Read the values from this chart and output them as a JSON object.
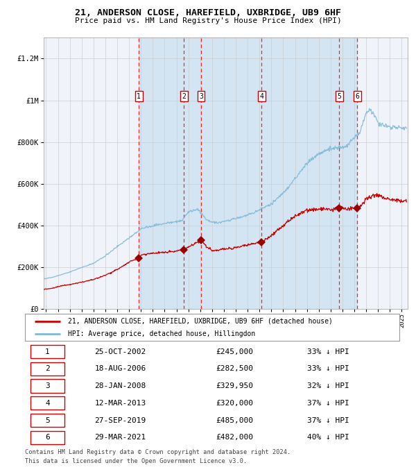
{
  "title": "21, ANDERSON CLOSE, HAREFIELD, UXBRIDGE, UB9 6HF",
  "subtitle": "Price paid vs. HM Land Registry's House Price Index (HPI)",
  "hpi_color": "#7fb8d8",
  "hpi_fill": "#c8dff0",
  "price_color": "#cc0000",
  "marker_color": "#990000",
  "grid_color": "#cccccc",
  "ylim": [
    0,
    1300000
  ],
  "xlim_start": 1994.8,
  "xlim_end": 2025.5,
  "yticks": [
    0,
    200000,
    400000,
    600000,
    800000,
    1000000,
    1200000
  ],
  "ytick_labels": [
    "£0",
    "£200K",
    "£400K",
    "£600K",
    "£800K",
    "£1M",
    "£1.2M"
  ],
  "sales": [
    {
      "num": 1,
      "year": 2002.82,
      "price": 245000,
      "label": "1"
    },
    {
      "num": 2,
      "year": 2006.63,
      "price": 282500,
      "label": "2"
    },
    {
      "num": 3,
      "year": 2008.08,
      "price": 329950,
      "label": "3"
    },
    {
      "num": 4,
      "year": 2013.19,
      "price": 320000,
      "label": "4"
    },
    {
      "num": 5,
      "year": 2019.74,
      "price": 485000,
      "label": "5"
    },
    {
      "num": 6,
      "year": 2021.25,
      "price": 482000,
      "label": "6"
    }
  ],
  "table_rows": [
    {
      "num": "1",
      "date": "25-OCT-2002",
      "price": "£245,000",
      "hpi": "33% ↓ HPI"
    },
    {
      "num": "2",
      "date": "18-AUG-2006",
      "price": "£282,500",
      "hpi": "33% ↓ HPI"
    },
    {
      "num": "3",
      "date": "28-JAN-2008",
      "price": "£329,950",
      "hpi": "32% ↓ HPI"
    },
    {
      "num": "4",
      "date": "12-MAR-2013",
      "price": "£320,000",
      "hpi": "37% ↓ HPI"
    },
    {
      "num": "5",
      "date": "27-SEP-2019",
      "price": "£485,000",
      "hpi": "37% ↓ HPI"
    },
    {
      "num": "6",
      "date": "29-MAR-2021",
      "price": "£482,000",
      "hpi": "40% ↓ HPI"
    }
  ],
  "legend_line1": "21, ANDERSON CLOSE, HAREFIELD, UXBRIDGE, UB9 6HF (detached house)",
  "legend_line2": "HPI: Average price, detached house, Hillingdon",
  "footer1": "Contains HM Land Registry data © Crown copyright and database right 2024.",
  "footer2": "This data is licensed under the Open Government Licence v3.0."
}
